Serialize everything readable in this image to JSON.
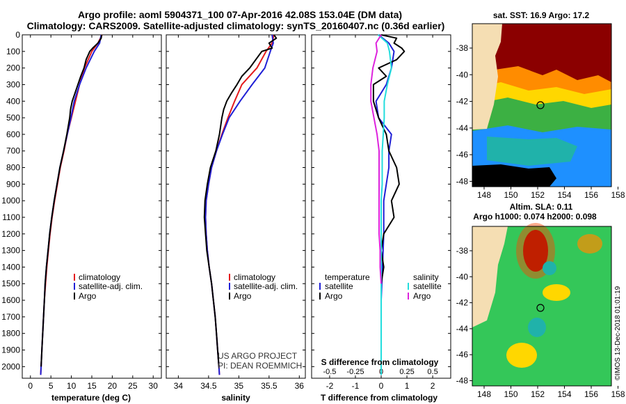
{
  "title": {
    "line1": "Argo profile: aoml 5904371_100 07-Apr-2016 42.08S 153.04E (DM data)",
    "line2": "Climatology: CARS2009. Satellite-adjusted climatology: synTS_20160407.nc (0.36d earlier)"
  },
  "colors": {
    "climatology": "#e41a1c",
    "satellite": "#1f1fd6",
    "argo": "#000000",
    "sat_s": "#22dddd",
    "argo_s": "#dd22dd"
  },
  "chart_data": [
    {
      "type": "line",
      "id": "temperature",
      "xlabel": "temperature (deg C)",
      "ylabel": "",
      "xlim": [
        -2,
        32
      ],
      "ylim": [
        2070,
        0
      ],
      "xticks": [
        "0",
        "5",
        "10",
        "15",
        "20",
        "25",
        "30"
      ],
      "yticks": [
        "0",
        "100",
        "200",
        "300",
        "400",
        "500",
        "600",
        "700",
        "800",
        "900",
        "1000",
        "1100",
        "1200",
        "1300",
        "1400",
        "1500",
        "1600",
        "1700",
        "1800",
        "1900",
        "2000"
      ],
      "legend": [
        "climatology",
        "satellite-adj. clim.",
        "Argo"
      ],
      "series": [
        {
          "name": "climatology",
          "depth": [
            0,
            50,
            100,
            200,
            300,
            400,
            500,
            600,
            700,
            800,
            900,
            1000,
            1100,
            1200,
            1300,
            1400,
            1500,
            1600,
            1700,
            1800,
            1900,
            2000,
            2050
          ],
          "values": [
            17.5,
            16.5,
            15.0,
            13.2,
            12.0,
            11.0,
            10.0,
            9.0,
            8.2,
            7.3,
            6.6,
            5.9,
            5.3,
            4.8,
            4.4,
            4.0,
            3.7,
            3.4,
            3.2,
            3.0,
            2.8,
            2.6,
            2.5
          ]
        },
        {
          "name": "satellite-adj. clim.",
          "depth": [
            0,
            50,
            100,
            200,
            300,
            400,
            500,
            600,
            700,
            800,
            900,
            1000,
            1100,
            1200,
            1300,
            1400,
            1500,
            1600,
            1700,
            1800,
            1900,
            2000,
            2050
          ],
          "values": [
            17.3,
            16.9,
            15.6,
            13.6,
            12.0,
            10.7,
            9.9,
            9.0,
            8.1,
            7.2,
            6.5,
            5.8,
            5.2,
            4.7,
            4.3,
            3.9,
            3.6,
            3.4,
            3.2,
            3.0,
            2.8,
            2.6,
            2.5
          ]
        },
        {
          "name": "Argo",
          "depth": [
            0,
            20,
            50,
            80,
            100,
            150,
            200,
            250,
            300,
            350,
            400,
            450,
            500,
            600,
            700,
            800,
            900,
            1000,
            1100,
            1200,
            1300,
            1400,
            1500,
            1600,
            1700,
            1800,
            1900,
            2000
          ],
          "values": [
            17.4,
            17.3,
            16.5,
            15.2,
            14.5,
            13.6,
            13.1,
            12.3,
            11.6,
            10.9,
            10.2,
            9.8,
            9.6,
            8.9,
            8.1,
            7.2,
            6.5,
            5.8,
            5.2,
            4.7,
            4.3,
            3.9,
            3.6,
            3.4,
            3.2,
            3.0,
            2.8,
            2.6
          ]
        }
      ]
    },
    {
      "type": "line",
      "id": "salinity",
      "xlabel": "salinity",
      "xlim": [
        33.8,
        36.1
      ],
      "ylim": [
        2070,
        0
      ],
      "xticks": [
        "34",
        "34.5",
        "35",
        "35.5",
        "36"
      ],
      "legend": [
        "climatology",
        "satellite-adj. clim.",
        "Argo"
      ],
      "series": [
        {
          "name": "climatology",
          "depth": [
            0,
            50,
            100,
            200,
            300,
            400,
            500,
            600,
            700,
            800,
            900,
            1000,
            1100,
            1200,
            1300,
            1400,
            1500,
            1600,
            1700,
            1800,
            1900,
            2000,
            2050
          ],
          "values": [
            35.58,
            35.55,
            35.45,
            35.3,
            35.05,
            34.93,
            34.82,
            34.72,
            34.63,
            34.55,
            34.5,
            34.46,
            34.45,
            34.46,
            34.48,
            34.51,
            34.55,
            34.58,
            34.61,
            34.63,
            34.65,
            34.67,
            34.68
          ]
        },
        {
          "name": "satellite-adj. clim.",
          "depth": [
            0,
            50,
            100,
            200,
            300,
            400,
            500,
            600,
            700,
            800,
            900,
            1000,
            1100,
            1200,
            1300,
            1400,
            1500,
            1600,
            1700,
            1800,
            1900,
            2000,
            2050
          ],
          "values": [
            35.55,
            35.57,
            35.52,
            35.43,
            35.22,
            35.02,
            34.84,
            34.73,
            34.63,
            34.55,
            34.5,
            34.46,
            34.45,
            34.46,
            34.48,
            34.51,
            34.55,
            34.58,
            34.61,
            34.63,
            34.65,
            34.67,
            34.68
          ]
        },
        {
          "name": "Argo",
          "depth": [
            0,
            20,
            50,
            80,
            100,
            150,
            200,
            250,
            300,
            350,
            400,
            450,
            500,
            600,
            700,
            800,
            900,
            1000,
            1100,
            1200,
            1300,
            1400,
            1500,
            1600,
            1700,
            1800,
            1900,
            2000
          ],
          "values": [
            35.58,
            35.62,
            35.5,
            35.55,
            35.38,
            35.28,
            35.18,
            35.05,
            34.97,
            34.88,
            34.8,
            34.75,
            34.72,
            34.68,
            34.62,
            34.53,
            34.48,
            34.44,
            34.43,
            34.45,
            34.47,
            34.51,
            34.55,
            34.58,
            34.61,
            34.63,
            34.65,
            34.67
          ]
        }
      ],
      "credit": [
        "US ARGO PROJECT",
        "PI: DEAN ROEMMICH"
      ]
    },
    {
      "type": "line",
      "id": "difference",
      "xlabel": "T difference from climatology",
      "xlabel_top": "S difference from climatology",
      "xlim": [
        -2.7,
        2.7
      ],
      "ylim": [
        2070,
        0
      ],
      "xticks": [
        "-2",
        "-1",
        "0",
        "1",
        "2"
      ],
      "xticks_top": [
        "-0.5",
        "-0.25",
        "0",
        "0.25",
        "0.5"
      ],
      "legend_left_title": "temperature",
      "legend_right_title": "salinity",
      "legend_left": [
        "satellite",
        "Argo"
      ],
      "legend_right": [
        "satellite",
        "Argo"
      ],
      "series": [
        {
          "name": "T satellite",
          "depth": [
            0,
            50,
            100,
            200,
            300,
            400,
            500,
            600,
            700,
            800,
            900,
            1000,
            1200,
            1400,
            1600,
            1800,
            2000,
            2050
          ],
          "values": [
            -0.1,
            0.3,
            0.5,
            0.4,
            0.2,
            -0.2,
            -0.1,
            0.4,
            0.3,
            0.3,
            0.2,
            0.1,
            0.1,
            0.05,
            0.0,
            0.0,
            0.0,
            0.0
          ]
        },
        {
          "name": "T Argo",
          "depth": [
            0,
            20,
            50,
            80,
            100,
            150,
            200,
            250,
            300,
            400,
            500,
            600,
            700,
            800,
            900,
            1000,
            1100,
            1200,
            1300,
            1400,
            1500
          ],
          "values": [
            0.0,
            0.6,
            0.5,
            0.8,
            0.9,
            0.6,
            -0.1,
            0.2,
            -0.3,
            -0.3,
            -0.1,
            0.2,
            0.3,
            0.6,
            0.7,
            0.4,
            0.5,
            0.1,
            0.0,
            0.1,
            0.0
          ]
        },
        {
          "name": "S satellite",
          "depth": [
            0,
            50,
            100,
            200,
            300,
            400,
            500,
            600,
            700,
            800,
            900,
            1000,
            1200,
            1400,
            1600,
            1800,
            2000,
            2050
          ],
          "values": [
            -0.03,
            0.06,
            0.08,
            0.1,
            0.06,
            0.03,
            0.03,
            0.02,
            0.01,
            0.01,
            0.01,
            0.0,
            0.0,
            0.0,
            0.0,
            0.0,
            0.0,
            0.0
          ]
        },
        {
          "name": "S Argo",
          "depth": [
            0,
            50,
            100,
            200,
            300,
            400,
            500,
            600,
            700,
            800,
            900,
            1000,
            1100,
            1200,
            1300,
            1400,
            1500
          ],
          "values": [
            0.0,
            -0.05,
            -0.04,
            -0.08,
            -0.1,
            -0.1,
            -0.07,
            -0.04,
            -0.02,
            -0.02,
            -0.02,
            -0.02,
            -0.02,
            -0.02,
            -0.01,
            -0.01,
            0.0
          ]
        }
      ]
    }
  ],
  "maps": {
    "sst": {
      "title": "sat. SST: 16.9 Argo: 17.2",
      "lat_labels": [
        "-38",
        "-40",
        "-42",
        "-44",
        "-46",
        "-48"
      ],
      "lon_labels": [
        "148",
        "150",
        "152",
        "154",
        "156",
        "158"
      ]
    },
    "sla": {
      "title1": "Altim. SLA: 0.11",
      "title2": "Argo h1000: 0.074 h2000: 0.098",
      "lat_labels": [
        "-38",
        "-40",
        "-42",
        "-44",
        "-46",
        "-48"
      ],
      "lon_labels": [
        "148",
        "150",
        "152",
        "154",
        "156",
        "158"
      ],
      "credit": "©IMOS 13-Dec-2018 01:01:19"
    }
  }
}
